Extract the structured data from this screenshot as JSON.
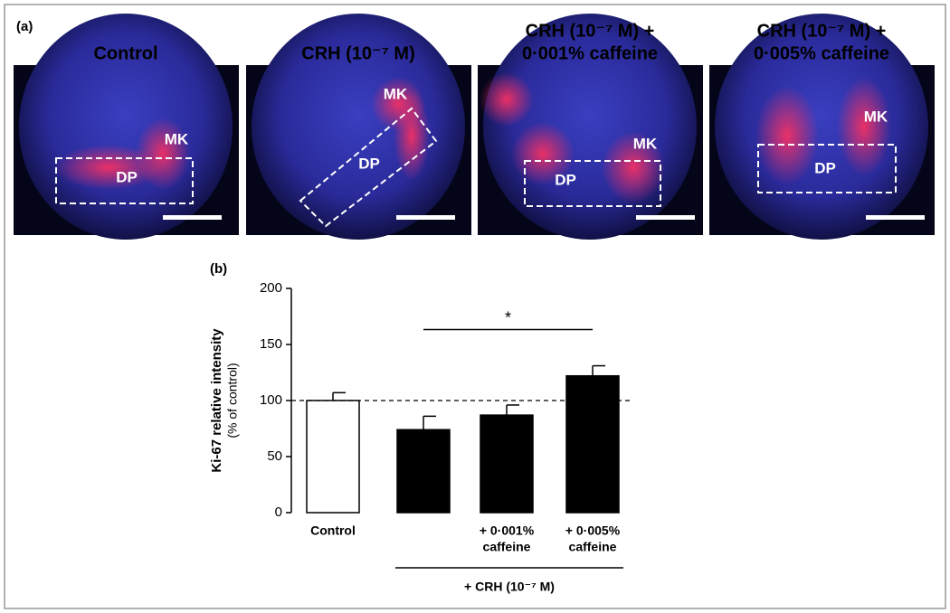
{
  "panel_a": {
    "label": "(a)",
    "images": [
      {
        "title": [
          "Control"
        ],
        "labels": [
          "MK",
          "DP"
        ]
      },
      {
        "title": [
          "CRH (10⁻⁷ M)"
        ],
        "labels": [
          "MK",
          "DP"
        ]
      },
      {
        "title": [
          "CRH (10⁻⁷ M) +",
          "0·001% caffeine"
        ],
        "labels": [
          "MK",
          "DP"
        ]
      },
      {
        "title": [
          "CRH (10⁻⁷ M) +",
          "0·005% caffeine"
        ],
        "labels": [
          "MK",
          "DP"
        ]
      }
    ]
  },
  "chart_data": {
    "type": "bar",
    "panel_label": "(b)",
    "y_label": [
      "Ki-67 relative intensity",
      "(% of control)"
    ],
    "categories": [
      [
        "Control"
      ],
      null,
      [
        "+ 0·001%",
        "caffeine"
      ],
      [
        "+ 0·005%",
        "caffeine"
      ]
    ],
    "group_label": "+ CRH (10⁻⁷ M)",
    "values": [
      100,
      74,
      87,
      122
    ],
    "errors": [
      7,
      12,
      9,
      9
    ],
    "colors": [
      "#ffffff",
      "#000000",
      "#000000",
      "#000000"
    ],
    "reference_line": 100,
    "significance": {
      "from": 1,
      "to": 3,
      "label": "*"
    },
    "ylim": [
      0,
      200
    ],
    "yticks": [
      0,
      50,
      100,
      150,
      200
    ]
  }
}
